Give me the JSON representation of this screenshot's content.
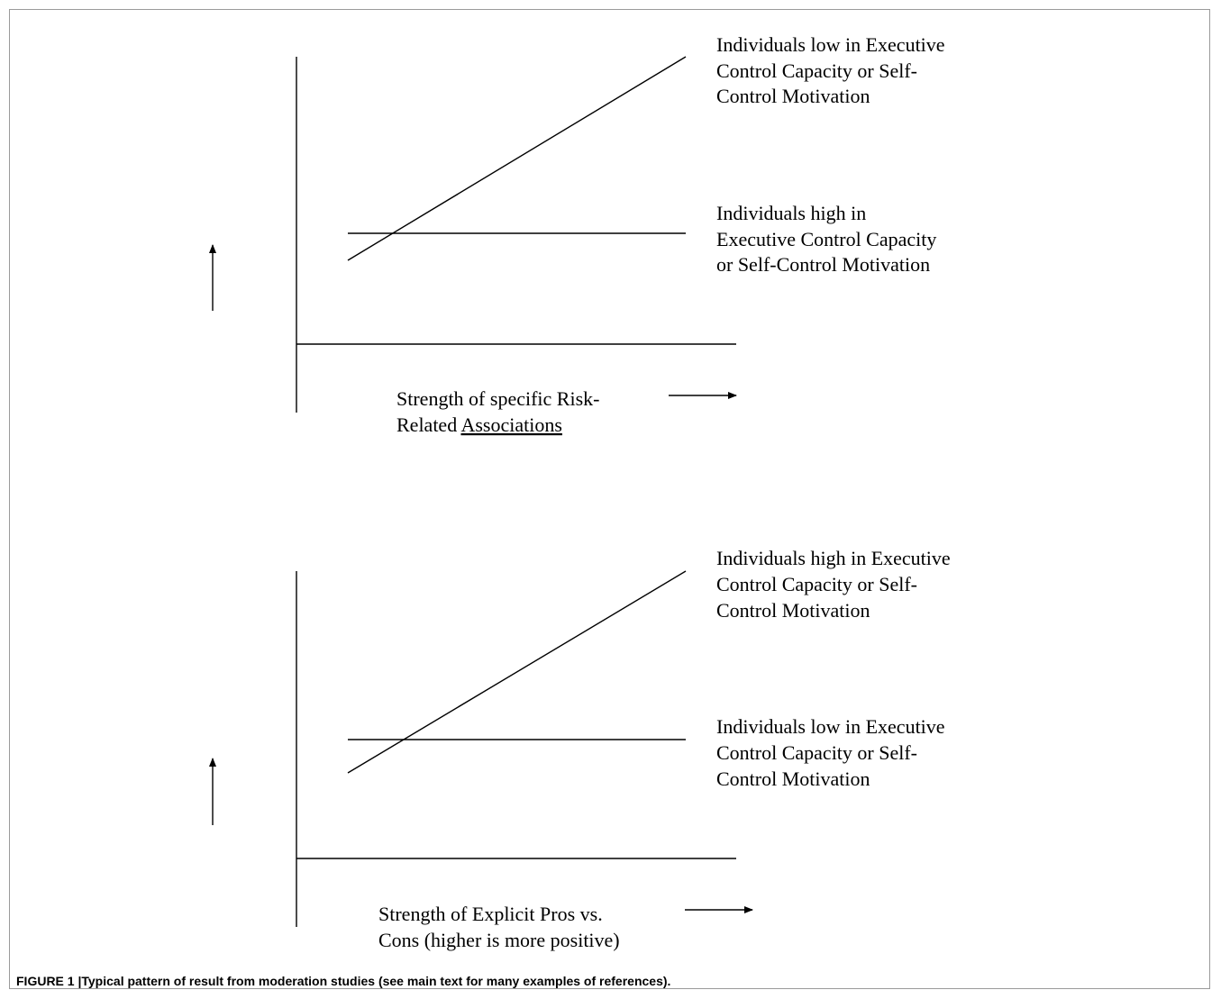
{
  "panels": [
    {
      "series": [
        {
          "label_lines": [
            "Individuals low in Executive",
            "Control Capacity or Self-",
            "Control Motivation"
          ],
          "trend": "increasing"
        },
        {
          "label_lines": [
            "Individuals high in",
            "Executive Control Capacity",
            "or Self-Control Motivation"
          ],
          "trend": "flat"
        }
      ],
      "x_label_lines": [
        [
          "Strength of specific Risk-"
        ],
        [
          "Related ",
          "Associations"
        ]
      ],
      "x_label_underlined_word": "Associations"
    },
    {
      "series": [
        {
          "label_lines": [
            "Individuals high in Executive",
            "Control Capacity or Self-",
            "Control Motivation"
          ],
          "trend": "increasing"
        },
        {
          "label_lines": [
            "Individuals low in Executive",
            "Control Capacity or Self-",
            "Control Motivation"
          ],
          "trend": "flat"
        }
      ],
      "x_label_lines": [
        [
          "Strength of Explicit Pros vs."
        ],
        [
          "Cons (higher is more positive)"
        ]
      ],
      "x_label_underlined_word": ""
    }
  ],
  "caption": {
    "label": "FIGURE 1 |",
    "text": "Typical pattern of result from moderation studies (see main text for many examples of references)."
  }
}
